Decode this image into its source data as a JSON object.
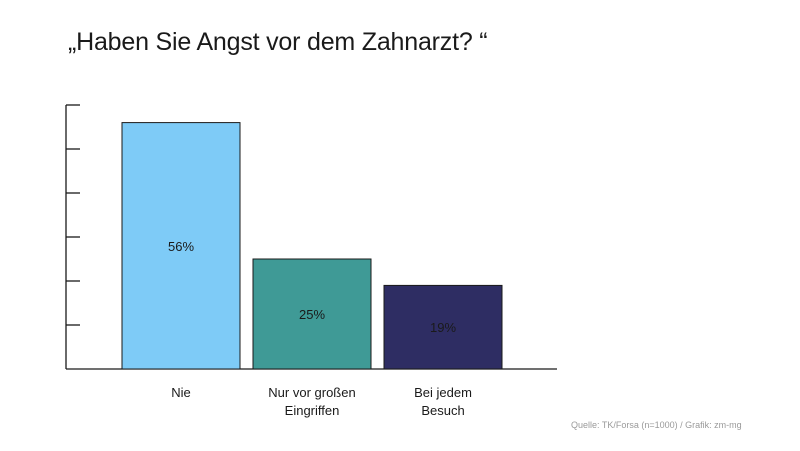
{
  "chart_data": {
    "type": "bar",
    "title": "„Haben Sie Angst vor dem Zahnarzt? “",
    "categories": [
      [
        "Nie"
      ],
      [
        "Nur vor großen",
        "Eingriffen"
      ],
      [
        "Bei jedem",
        "Besuch"
      ]
    ],
    "values": [
      56,
      25,
      19
    ],
    "value_labels": [
      "56%",
      "25%",
      "19%"
    ],
    "colors": [
      "#7ecbf7",
      "#3f9a96",
      "#2e2d63"
    ],
    "ylim": [
      0,
      60
    ],
    "ytick_count": 6,
    "grid": false,
    "legend": "none",
    "source": "Quelle: TK/Forsa (n=1000) / Grafik: zm-mg"
  }
}
